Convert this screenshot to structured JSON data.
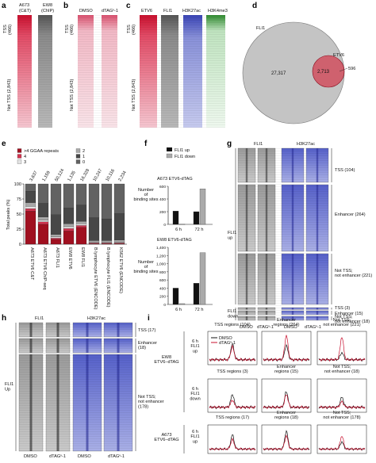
{
  "panels": {
    "a": {
      "label": "a",
      "col_labels": [
        "A673\n(C&T)",
        "EW8\n(ChIP)"
      ],
      "row_labels": [
        "TSS\n(466)",
        "Not TSS (2,843)"
      ]
    },
    "b": {
      "label": "b",
      "col_labels": [
        "DMSO",
        "dTAGᵛ-1"
      ]
    },
    "c": {
      "label": "c",
      "col_labels": [
        "ETV6",
        "FLI1",
        "H3K27ac",
        "H3K4me3"
      ],
      "row_labels": [
        "TSS\n(466)",
        "Not TSS (2,843)"
      ]
    },
    "d": {
      "label": "d",
      "big_label": "FLI1",
      "small_label": "ETV6",
      "values": [
        "27,317",
        "2,713",
        "596"
      ]
    },
    "e": {
      "label": "e",
      "ylabel": "Total peaks (%)",
      "yticks": [
        "0",
        "25",
        "50",
        "75",
        "100"
      ],
      "legend": [
        ">4 GGAA repeats",
        "4",
        "3",
        "2",
        "1",
        "0"
      ],
      "top_counts": [
        "3,637",
        "1,159",
        "50,124",
        "1,135",
        "16,328",
        "10,247",
        "10,116",
        "2,234"
      ],
      "categories": [
        "A673 ETV6 C&T",
        "A673 ETV6\nChIP-seq",
        "A673 FLI1",
        "EW8 ETV6",
        "EW8 FLI1",
        "B lymphocyte\nETV6 (ENCODE)",
        "B lymphocyte\nFLI1 (ENCODE)",
        "K562 ETV6\n(ENCODE)"
      ]
    },
    "f": {
      "label": "f",
      "legend": [
        "FLI1 up",
        "FLI1 down"
      ],
      "ylabel": "Number\nof\nbinding sites",
      "top_title": "A673 ETV6-dTAG",
      "bottom_title": "EW8 ETV6-dTAG",
      "xticks": [
        "6 h",
        "72 h"
      ],
      "top_yticks": [
        "0",
        "200",
        "400",
        "600"
      ],
      "bottom_yticks": [
        "0",
        "200",
        "400",
        "600",
        "800",
        "1,000",
        "1,200",
        "1,400"
      ]
    },
    "g": {
      "label": "g",
      "col_labels": [
        "FLI1",
        "H3K27ac"
      ],
      "x_labels": [
        "DMSO",
        "dTAGᵛ-1",
        "DMSO",
        "dTAGᵛ-1"
      ],
      "side": [
        "FLI1\nup",
        "FLI1\ndown"
      ],
      "groups": [
        "TSS (104)",
        "Enhancer (264)",
        "Not TSS;\nnot enhancer (221)",
        "TSS (3)",
        "Enhancer (15)",
        "Not TSS;\nnot enhancer (18)"
      ]
    },
    "h": {
      "label": "h",
      "col_labels": [
        "FLI1",
        "H3K27ac"
      ],
      "x_labels": [
        "DMSO",
        "dTAGᵛ-1",
        "DMSO",
        "dTAGᵛ-1"
      ],
      "side": "FLI1\nUp",
      "groups": [
        "TSS (17)",
        "Enhancer\n(18)",
        "Not TSS;\nnot enhancer\n(178)"
      ]
    },
    "i": {
      "label": "i",
      "col_titles": [
        "TSS regions (104)",
        "Enhancer\nregions (264)",
        "Not TSS;\nnot enhancer (221)",
        "TSS regions (3)",
        "Enhancer\nregions (15)",
        "Not TSS;\nnot enhancer (18)",
        "TSS regions (17)",
        "Enhancer\nregions (18)",
        "Not TSS;\nnot enhancer (178)"
      ],
      "row_labels": [
        "EW8\nETV6–dTAG",
        "A673\nETV6–dTAG"
      ],
      "sub_labels": [
        "6 h\nFLI1\nup",
        "6 h\nFLI1\ndown",
        "6 h\nFLI1\nup"
      ],
      "legend": [
        "DMSO",
        "dTAGᵛ-1"
      ]
    }
  },
  "chart_data": [
    {
      "type": "bar",
      "title": "",
      "ylabel": "Total peaks (%)",
      "ylim": [
        0,
        100
      ],
      "categories": [
        "A673 ETV6 C&T",
        "A673 ETV6 ChIP-seq",
        "A673 FLI1",
        "EW8 ETV6",
        "EW8 FLI1",
        "B lymphocyte ETV6 (ENCODE)",
        "B lymphocyte FLI1 (ENCODE)",
        "K562 ETV6 (ENCODE)"
      ],
      "series": [
        {
          "name": ">4 GGAA repeats",
          "values": [
            55,
            33,
            8,
            22,
            28,
            1,
            1,
            1
          ]
        },
        {
          "name": "4",
          "values": [
            4,
            4,
            2,
            4,
            3,
            1,
            1,
            1
          ]
        },
        {
          "name": "3",
          "values": [
            4,
            3,
            2,
            3,
            3,
            1,
            1,
            1
          ]
        },
        {
          "name": "2",
          "values": [
            6,
            5,
            4,
            5,
            4,
            3,
            3,
            4
          ]
        },
        {
          "name": "1",
          "values": [
            19,
            23,
            33,
            26,
            27,
            38,
            36,
            44
          ]
        },
        {
          "name": "0",
          "values": [
            12,
            32,
            51,
            40,
            35,
            56,
            58,
            49
          ]
        }
      ]
    },
    {
      "type": "bar",
      "title": "A673 ETV6-dTAG",
      "ylim": [
        0,
        600
      ],
      "categories": [
        "6 h",
        "72 h"
      ],
      "series": [
        {
          "name": "FLI1 up",
          "values": [
            210,
            200
          ]
        },
        {
          "name": "FLI1 down",
          "values": [
            2,
            560
          ]
        }
      ]
    },
    {
      "type": "bar",
      "title": "EW8 ETV6-dTAG",
      "ylim": [
        0,
        1400
      ],
      "categories": [
        "6 h",
        "72 h"
      ],
      "series": [
        {
          "name": "FLI1 up",
          "values": [
            400,
            520
          ]
        },
        {
          "name": "FLI1 down",
          "values": [
            20,
            1270
          ]
        }
      ]
    }
  ],
  "colors": {
    "red": "#c8102e",
    "pink": "#e8708a",
    "gray": "#aaaaaa",
    "blue": "#4b55c8",
    "green": "#4aa04a",
    "dark": "#333333"
  }
}
